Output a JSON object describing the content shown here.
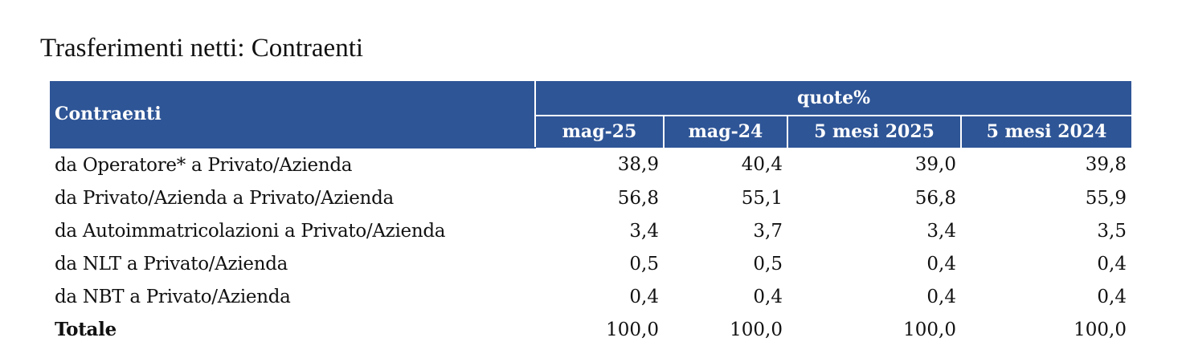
{
  "title": "Trasferimenti netti: Contraenti",
  "table": {
    "corner_header": "Contraenti",
    "group_header": "quote%",
    "columns": [
      "mag-25",
      "mag-24",
      "5 mesi 2025",
      "5 mesi 2024"
    ],
    "rows": [
      {
        "label": "da Operatore* a Privato/Azienda",
        "values": [
          "38,9",
          "40,4",
          "39,0",
          "39,8"
        ]
      },
      {
        "label": "da Privato/Azienda a Privato/Azienda",
        "values": [
          "56,8",
          "55,1",
          "56,8",
          "55,9"
        ]
      },
      {
        "label": "da Autoimmatricolazioni  a Privato/Azienda",
        "values": [
          "3,4",
          "3,7",
          "3,4",
          "3,5"
        ]
      },
      {
        "label": "da NLT a Privato/Azienda",
        "values": [
          "0,5",
          "0,5",
          "0,4",
          "0,4"
        ]
      },
      {
        "label": "da NBT a Privato/Azienda",
        "values": [
          "0,4",
          "0,4",
          "0,4",
          "0,4"
        ]
      }
    ],
    "total": {
      "label": "Totale",
      "values": [
        "100,0",
        "100,0",
        "100,0",
        "100,0"
      ]
    }
  },
  "colors": {
    "header_background": "#2e5596",
    "header_text": "#ffffff"
  }
}
